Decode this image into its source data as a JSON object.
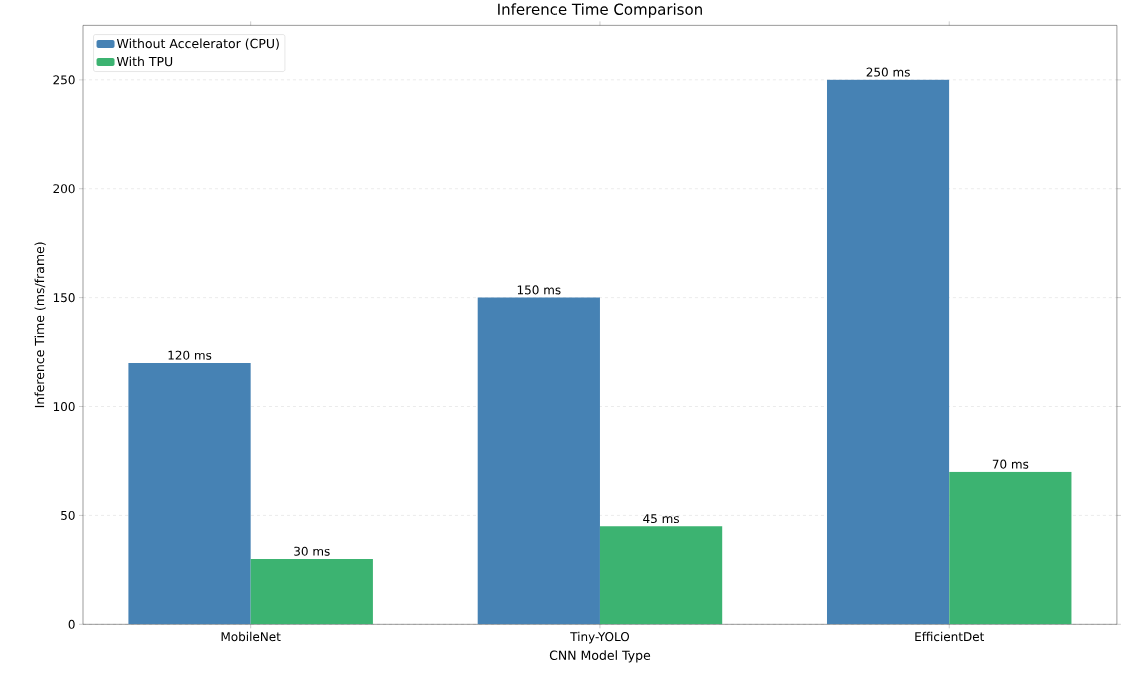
{
  "chart_data": {
    "type": "bar",
    "title": "Inference Time Comparison",
    "xlabel": "CNN Model Type",
    "ylabel": "Inference Time (ms/frame)",
    "categories": [
      "MobileNet",
      "Tiny-YOLO",
      "EfficientDet"
    ],
    "series": [
      {
        "name": "Without Accelerator (CPU)",
        "color": "#4682b4",
        "values": [
          120,
          150,
          250
        ],
        "value_labels": [
          "120 ms",
          "150 ms",
          "250 ms"
        ]
      },
      {
        "name": "With TPU",
        "color": "#3cb371",
        "values": [
          30,
          45,
          70
        ],
        "value_labels": [
          "30 ms",
          "45 ms",
          "70 ms"
        ]
      }
    ],
    "ylim": [
      0,
      275
    ],
    "yticks": [
      0,
      50,
      100,
      150,
      200,
      250
    ],
    "grid": "y",
    "legend": "top left"
  }
}
